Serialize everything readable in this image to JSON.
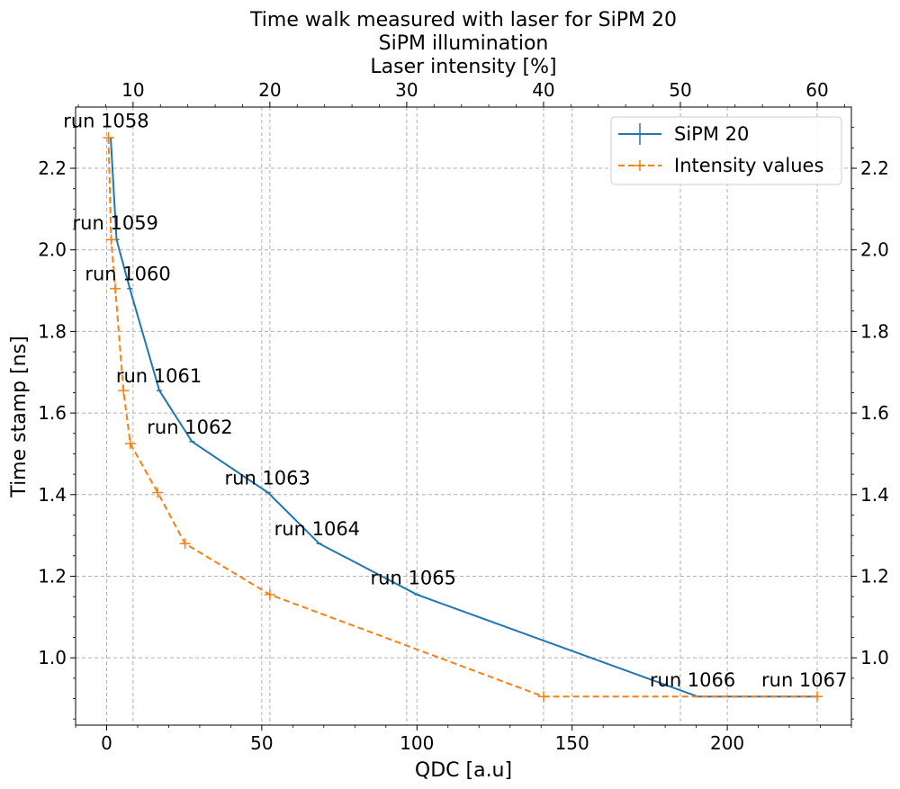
{
  "chart_data": {
    "type": "line",
    "title": "Time walk measured with laser for SiPM 20",
    "top_axis_title": "SiPM illumination",
    "top_axis_label": "Laser intensity [%]",
    "xlabel": "QDC [a.u]",
    "ylabel": "Time stamp [ns]",
    "xlim": [
      -10,
      240
    ],
    "ylim": [
      0.835,
      2.35
    ],
    "top_xlim": [
      5.8,
      62.5
    ],
    "x_ticks": [
      0,
      50,
      100,
      150,
      200
    ],
    "x_tick_labels": [
      "0",
      "50",
      "100",
      "150",
      "200"
    ],
    "y_ticks": [
      1.0,
      1.2,
      1.4,
      1.6,
      1.8,
      2.0,
      2.2
    ],
    "y_tick_labels": [
      "1.0",
      "1.2",
      "1.4",
      "1.6",
      "1.8",
      "2.0",
      "2.2"
    ],
    "top_ticks": [
      10,
      20,
      30,
      40,
      50,
      60
    ],
    "top_tick_labels": [
      "10",
      "20",
      "30",
      "40",
      "50",
      "60"
    ],
    "grid": true,
    "legend_position": "top-right",
    "series": [
      {
        "name": "SiPM 20",
        "axis": "bottom",
        "color": "#1f77b4",
        "style": "solid",
        "marker": "errorbar",
        "x": [
          1.3,
          3.2,
          7.5,
          17,
          27.5,
          52,
          68.5,
          100,
          190.5,
          229
        ],
        "y": [
          2.275,
          2.025,
          1.905,
          1.655,
          1.53,
          1.405,
          1.28,
          1.155,
          0.905,
          0.905
        ]
      },
      {
        "name": "Intensity values",
        "axis": "top",
        "color": "#ff7f0e",
        "style": "dashed",
        "marker": "plus",
        "x": [
          8.2,
          8.4,
          8.7,
          9.3,
          9.8,
          11.8,
          13.8,
          20,
          40,
          60
        ],
        "y": [
          2.275,
          2.025,
          1.905,
          1.655,
          1.525,
          1.405,
          1.28,
          1.155,
          0.905,
          0.905
        ]
      }
    ],
    "annotations": [
      {
        "text": "run 1058",
        "x": -14,
        "y": 2.3
      },
      {
        "text": "run 1059",
        "x": -11,
        "y": 2.05
      },
      {
        "text": "run 1060",
        "x": -7,
        "y": 1.925
      },
      {
        "text": "run 1061",
        "x": 3,
        "y": 1.675
      },
      {
        "text": "run 1062",
        "x": 13,
        "y": 1.55
      },
      {
        "text": "run 1063",
        "x": 38,
        "y": 1.425
      },
      {
        "text": "run 1064",
        "x": 54,
        "y": 1.3
      },
      {
        "text": "run 1065",
        "x": 85,
        "y": 1.18
      },
      {
        "text": "run 1066",
        "x": 175,
        "y": 0.93
      },
      {
        "text": "run 1067",
        "x": 211,
        "y": 0.93
      }
    ]
  }
}
